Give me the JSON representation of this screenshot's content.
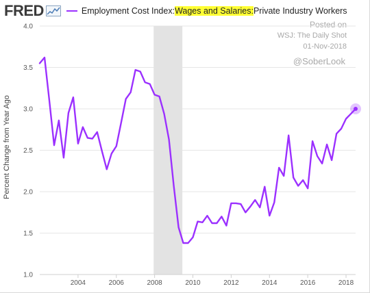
{
  "header": {
    "logo": "FRED",
    "title_prefix": "Employment Cost Index: ",
    "title_highlight": "Wages and Salaries:",
    "title_suffix": " Private Industry Workers",
    "series_color": "#9b30ff",
    "highlight_color": "#ffff33"
  },
  "watermark": {
    "posted_on": "Posted on",
    "source": "WSJ: The Daily Shot",
    "date": "01-Nov-2018",
    "handle": "@SoberLook"
  },
  "chart_data": {
    "type": "line",
    "ylabel": "Percent Change from Year Ago",
    "xlabel": "",
    "xlim": [
      2002.0,
      2018.5
    ],
    "ylim": [
      1.0,
      4.0
    ],
    "y_ticks": [
      "1.0",
      "1.5",
      "2.0",
      "2.5",
      "3.0",
      "3.5",
      "4.0"
    ],
    "x_ticks": [
      "2004",
      "2006",
      "2008",
      "2010",
      "2012",
      "2014",
      "2016",
      "2018"
    ],
    "grid": true,
    "recession": {
      "start": 2007.95,
      "end": 2009.45,
      "color": "#e3e3e3"
    },
    "series": [
      {
        "color": "#9b30ff",
        "x": [
          2002.0,
          2002.25,
          2002.5,
          2002.75,
          2003.0,
          2003.25,
          2003.5,
          2003.75,
          2004.0,
          2004.25,
          2004.5,
          2004.75,
          2005.0,
          2005.25,
          2005.5,
          2005.75,
          2006.0,
          2006.25,
          2006.5,
          2006.75,
          2007.0,
          2007.25,
          2007.5,
          2007.75,
          2008.0,
          2008.25,
          2008.5,
          2008.75,
          2009.0,
          2009.25,
          2009.5,
          2009.75,
          2010.0,
          2010.25,
          2010.5,
          2010.75,
          2011.0,
          2011.25,
          2011.5,
          2011.75,
          2012.0,
          2012.25,
          2012.5,
          2012.75,
          2013.0,
          2013.25,
          2013.5,
          2013.75,
          2014.0,
          2014.25,
          2014.5,
          2014.75,
          2015.0,
          2015.25,
          2015.5,
          2015.75,
          2016.0,
          2016.25,
          2016.5,
          2016.75,
          2017.0,
          2017.25,
          2017.5,
          2017.75,
          2018.0,
          2018.25,
          2018.5
        ],
        "values": [
          3.55,
          3.62,
          3.1,
          2.56,
          2.86,
          2.41,
          2.95,
          3.14,
          2.58,
          2.78,
          2.65,
          2.64,
          2.72,
          2.49,
          2.27,
          2.46,
          2.55,
          2.83,
          3.12,
          3.2,
          3.47,
          3.45,
          3.32,
          3.3,
          3.17,
          3.15,
          2.94,
          2.63,
          2.07,
          1.57,
          1.38,
          1.38,
          1.45,
          1.64,
          1.63,
          1.71,
          1.62,
          1.62,
          1.7,
          1.59,
          1.86,
          1.86,
          1.85,
          1.75,
          1.82,
          1.9,
          1.81,
          2.06,
          1.71,
          1.87,
          2.29,
          2.19,
          2.68,
          2.17,
          2.07,
          2.14,
          2.04,
          2.61,
          2.43,
          2.34,
          2.57,
          2.38,
          2.7,
          2.76,
          2.88,
          2.94,
          3.0
        ]
      }
    ]
  }
}
